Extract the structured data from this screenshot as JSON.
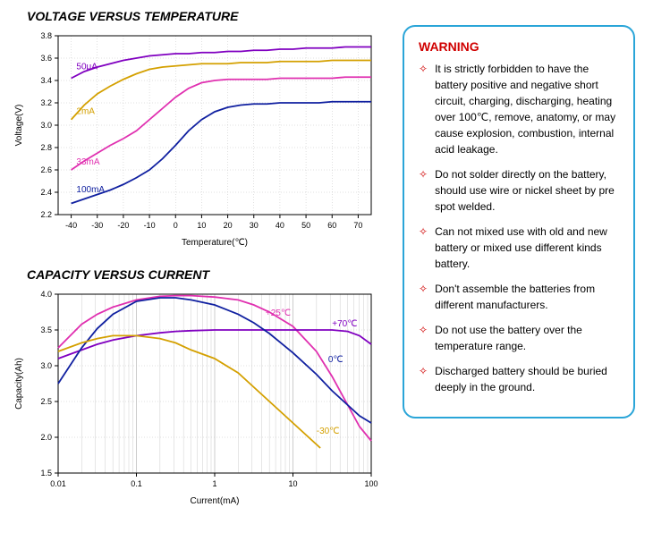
{
  "chart1": {
    "title": "VOLTAGE VERSUS TEMPERATURE",
    "type": "line",
    "xlabel": "Temperature(℃)",
    "ylabel": "Voltage(V)",
    "xlim": [
      -45,
      75
    ],
    "ylim": [
      2.2,
      3.8
    ],
    "xticks": [
      -40,
      -30,
      -20,
      -10,
      0,
      10,
      20,
      30,
      40,
      50,
      60,
      70
    ],
    "yticks": [
      2.2,
      2.4,
      2.6,
      2.8,
      3.0,
      3.2,
      3.4,
      3.6,
      3.8
    ],
    "bg": "#ffffff",
    "grid_color": "#c0c0c0",
    "axis_color": "#000000",
    "label_fontsize": 10,
    "tick_fontsize": 9,
    "series": [
      {
        "label": "50μA",
        "color": "#8000c0",
        "label_xy": [
          -38,
          3.5
        ],
        "data": [
          [
            -40,
            3.42
          ],
          [
            -35,
            3.48
          ],
          [
            -30,
            3.52
          ],
          [
            -25,
            3.55
          ],
          [
            -20,
            3.58
          ],
          [
            -15,
            3.6
          ],
          [
            -10,
            3.62
          ],
          [
            -5,
            3.63
          ],
          [
            0,
            3.64
          ],
          [
            5,
            3.64
          ],
          [
            10,
            3.65
          ],
          [
            15,
            3.65
          ],
          [
            20,
            3.66
          ],
          [
            25,
            3.66
          ],
          [
            30,
            3.67
          ],
          [
            35,
            3.67
          ],
          [
            40,
            3.68
          ],
          [
            45,
            3.68
          ],
          [
            50,
            3.69
          ],
          [
            55,
            3.69
          ],
          [
            60,
            3.69
          ],
          [
            65,
            3.7
          ],
          [
            70,
            3.7
          ],
          [
            75,
            3.7
          ]
        ]
      },
      {
        "label": "2mA",
        "color": "#d4a000",
        "label_xy": [
          -38,
          3.1
        ],
        "data": [
          [
            -40,
            3.05
          ],
          [
            -35,
            3.18
          ],
          [
            -30,
            3.28
          ],
          [
            -25,
            3.35
          ],
          [
            -20,
            3.41
          ],
          [
            -15,
            3.46
          ],
          [
            -10,
            3.5
          ],
          [
            -5,
            3.52
          ],
          [
            0,
            3.53
          ],
          [
            5,
            3.54
          ],
          [
            10,
            3.55
          ],
          [
            15,
            3.55
          ],
          [
            20,
            3.55
          ],
          [
            25,
            3.56
          ],
          [
            30,
            3.56
          ],
          [
            35,
            3.56
          ],
          [
            40,
            3.57
          ],
          [
            45,
            3.57
          ],
          [
            50,
            3.57
          ],
          [
            55,
            3.57
          ],
          [
            60,
            3.58
          ],
          [
            65,
            3.58
          ],
          [
            70,
            3.58
          ],
          [
            75,
            3.58
          ]
        ]
      },
      {
        "label": "33mA",
        "color": "#e030b0",
        "label_xy": [
          -38,
          2.65
        ],
        "data": [
          [
            -40,
            2.6
          ],
          [
            -35,
            2.68
          ],
          [
            -30,
            2.75
          ],
          [
            -25,
            2.82
          ],
          [
            -20,
            2.88
          ],
          [
            -15,
            2.95
          ],
          [
            -10,
            3.05
          ],
          [
            -5,
            3.15
          ],
          [
            0,
            3.25
          ],
          [
            5,
            3.33
          ],
          [
            10,
            3.38
          ],
          [
            15,
            3.4
          ],
          [
            20,
            3.41
          ],
          [
            25,
            3.41
          ],
          [
            30,
            3.41
          ],
          [
            35,
            3.41
          ],
          [
            40,
            3.42
          ],
          [
            45,
            3.42
          ],
          [
            50,
            3.42
          ],
          [
            55,
            3.42
          ],
          [
            60,
            3.42
          ],
          [
            65,
            3.43
          ],
          [
            70,
            3.43
          ],
          [
            75,
            3.43
          ]
        ]
      },
      {
        "label": "100mA",
        "color": "#1020a0",
        "label_xy": [
          -38,
          2.4
        ],
        "data": [
          [
            -40,
            2.3
          ],
          [
            -35,
            2.34
          ],
          [
            -30,
            2.38
          ],
          [
            -25,
            2.42
          ],
          [
            -20,
            2.47
          ],
          [
            -15,
            2.53
          ],
          [
            -10,
            2.6
          ],
          [
            -5,
            2.7
          ],
          [
            0,
            2.82
          ],
          [
            5,
            2.95
          ],
          [
            10,
            3.05
          ],
          [
            15,
            3.12
          ],
          [
            20,
            3.16
          ],
          [
            25,
            3.18
          ],
          [
            30,
            3.19
          ],
          [
            35,
            3.19
          ],
          [
            40,
            3.2
          ],
          [
            45,
            3.2
          ],
          [
            50,
            3.2
          ],
          [
            55,
            3.2
          ],
          [
            60,
            3.21
          ],
          [
            65,
            3.21
          ],
          [
            70,
            3.21
          ],
          [
            75,
            3.21
          ]
        ]
      }
    ]
  },
  "chart2": {
    "title": "CAPACITY VERSUS CURRENT",
    "type": "line-logx",
    "xlabel": "Current(mA)",
    "ylabel": "Capacity(Ah)",
    "xlim_log": [
      -2,
      2
    ],
    "ylim": [
      1.5,
      4.0
    ],
    "xtick_labels": [
      "0.01",
      "0.1",
      "1",
      "10",
      "100"
    ],
    "yticks": [
      1.5,
      2.0,
      2.5,
      3.0,
      3.5,
      4.0
    ],
    "bg": "#ffffff",
    "grid_color": "#c0c0c0",
    "axis_color": "#000000",
    "label_fontsize": 10,
    "tick_fontsize": 9,
    "series": [
      {
        "label": "+25℃",
        "color": "#e030b0",
        "label_logxy": [
          0.65,
          3.7
        ],
        "data_logx": [
          [
            -2,
            3.25
          ],
          [
            -1.7,
            3.58
          ],
          [
            -1.5,
            3.72
          ],
          [
            -1.3,
            3.82
          ],
          [
            -1.0,
            3.92
          ],
          [
            -0.7,
            3.97
          ],
          [
            -0.5,
            3.98
          ],
          [
            -0.3,
            3.98
          ],
          [
            0,
            3.96
          ],
          [
            0.3,
            3.92
          ],
          [
            0.5,
            3.85
          ],
          [
            0.7,
            3.75
          ],
          [
            1.0,
            3.55
          ],
          [
            1.3,
            3.2
          ],
          [
            1.5,
            2.85
          ],
          [
            1.7,
            2.45
          ],
          [
            1.85,
            2.15
          ],
          [
            2.0,
            1.95
          ]
        ]
      },
      {
        "label": "+70℃",
        "color": "#8000c0",
        "label_logxy": [
          1.5,
          3.55
        ],
        "data_logx": [
          [
            -2,
            3.1
          ],
          [
            -1.7,
            3.22
          ],
          [
            -1.5,
            3.3
          ],
          [
            -1.3,
            3.36
          ],
          [
            -1.0,
            3.42
          ],
          [
            -0.7,
            3.46
          ],
          [
            -0.5,
            3.48
          ],
          [
            -0.3,
            3.49
          ],
          [
            0,
            3.5
          ],
          [
            0.3,
            3.5
          ],
          [
            0.5,
            3.5
          ],
          [
            0.7,
            3.5
          ],
          [
            1.0,
            3.5
          ],
          [
            1.3,
            3.5
          ],
          [
            1.5,
            3.5
          ],
          [
            1.7,
            3.48
          ],
          [
            1.85,
            3.42
          ],
          [
            2.0,
            3.3
          ]
        ]
      },
      {
        "label": "0℃",
        "color": "#1020a0",
        "label_logxy": [
          1.45,
          3.05
        ],
        "data_logx": [
          [
            -2,
            2.75
          ],
          [
            -1.7,
            3.25
          ],
          [
            -1.5,
            3.52
          ],
          [
            -1.3,
            3.72
          ],
          [
            -1.0,
            3.9
          ],
          [
            -0.7,
            3.95
          ],
          [
            -0.5,
            3.95
          ],
          [
            -0.3,
            3.92
          ],
          [
            0,
            3.85
          ],
          [
            0.3,
            3.72
          ],
          [
            0.5,
            3.6
          ],
          [
            0.7,
            3.45
          ],
          [
            1.0,
            3.18
          ],
          [
            1.3,
            2.88
          ],
          [
            1.5,
            2.65
          ],
          [
            1.7,
            2.45
          ],
          [
            1.85,
            2.3
          ],
          [
            2.0,
            2.2
          ]
        ]
      },
      {
        "label": "-30℃",
        "color": "#d4a000",
        "label_logxy": [
          1.3,
          2.05
        ],
        "data_logx": [
          [
            -2,
            3.2
          ],
          [
            -1.7,
            3.32
          ],
          [
            -1.5,
            3.38
          ],
          [
            -1.3,
            3.42
          ],
          [
            -1.0,
            3.42
          ],
          [
            -0.7,
            3.38
          ],
          [
            -0.5,
            3.32
          ],
          [
            -0.3,
            3.22
          ],
          [
            0,
            3.1
          ],
          [
            0.3,
            2.9
          ],
          [
            0.5,
            2.7
          ],
          [
            0.7,
            2.5
          ],
          [
            1.0,
            2.2
          ],
          [
            1.2,
            2.0
          ],
          [
            1.35,
            1.85
          ]
        ]
      }
    ]
  },
  "warning": {
    "title": "WARNING",
    "items": [
      "It is strictly forbidden to have the battery positive and negative short circuit, charging, discharging, heating over 100℃, remove, anatomy, or may cause explosion, combustion, internal acid leakage.",
      "Do not solder directly on the battery, should use wire or nickel sheet by pre spot welded.",
      "Can not mixed use with old and new battery or mixed use different kinds battery.",
      "Don't assemble the batteries from different manufacturers.",
      "Do not use the battery over the temperature range.",
      "Discharged battery should be buried deeply in the ground."
    ],
    "bullet_color": "#d00000",
    "border_color": "#2aa5d8"
  }
}
